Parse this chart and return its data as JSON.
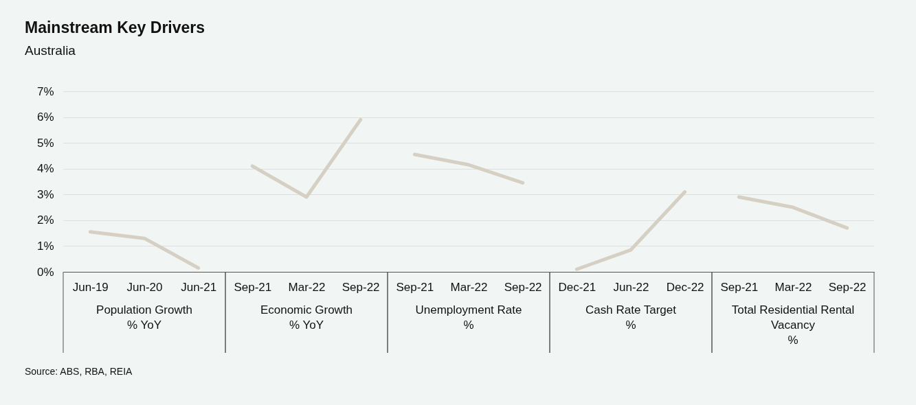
{
  "chart_data": {
    "type": "line",
    "title": "Mainstream Key Drivers",
    "subtitle": "Australia",
    "categories": [
      "Jun-19",
      "Jun-20",
      "Jun-21",
      "Sep-21",
      "Mar-22",
      "Sep-22",
      "Sep-21",
      "Mar-22",
      "Sep-22",
      "Dec-21",
      "Jun-22",
      "Dec-22",
      "Sep-21",
      "Mar-22",
      "Sep-22"
    ],
    "series": [
      {
        "color": "#d6cfc4",
        "values": [
          1.55,
          1.3,
          0.15,
          null,
          null,
          null,
          null,
          null,
          null,
          null,
          null,
          null,
          null,
          null,
          null
        ]
      },
      {
        "color": "#d6cfc4",
        "values": [
          null,
          null,
          null,
          4.1,
          2.9,
          5.9,
          null,
          null,
          null,
          null,
          null,
          null,
          null,
          null,
          null
        ]
      },
      {
        "color": "#d6cfc4",
        "values": [
          null,
          null,
          null,
          null,
          null,
          null,
          4.55,
          4.15,
          3.45,
          null,
          null,
          null,
          null,
          null,
          null
        ]
      },
      {
        "color": "#d6cfc4",
        "values": [
          null,
          null,
          null,
          null,
          null,
          null,
          null,
          null,
          null,
          0.1,
          0.85,
          3.1,
          null,
          null,
          null
        ]
      },
      {
        "color": "#d6cfc4",
        "values": [
          null,
          null,
          null,
          null,
          null,
          null,
          null,
          null,
          null,
          null,
          null,
          null,
          2.9,
          2.5,
          1.7
        ]
      }
    ],
    "ylim": [
      0,
      7
    ],
    "yticks": [
      {
        "value": 0,
        "label": "0%"
      },
      {
        "value": 1,
        "label": "1%"
      },
      {
        "value": 2,
        "label": "2%"
      },
      {
        "value": 3,
        "label": "3%"
      },
      {
        "value": 4,
        "label": "4%"
      },
      {
        "value": 5,
        "label": "5%"
      },
      {
        "value": 6,
        "label": "6%"
      },
      {
        "value": 7,
        "label": "7%"
      }
    ],
    "grid": "y",
    "line_style": "solid",
    "marker": "none",
    "annotations": [
      "Population Growth\n% YoY",
      "Economic Growth\n% YoY",
      "Unemployment Rate\n%",
      "Cash Rate Target\n%",
      "Total Residential Rental\nVacancy\n%",
      "Source: ABS, RBA, REIA"
    ]
  }
}
